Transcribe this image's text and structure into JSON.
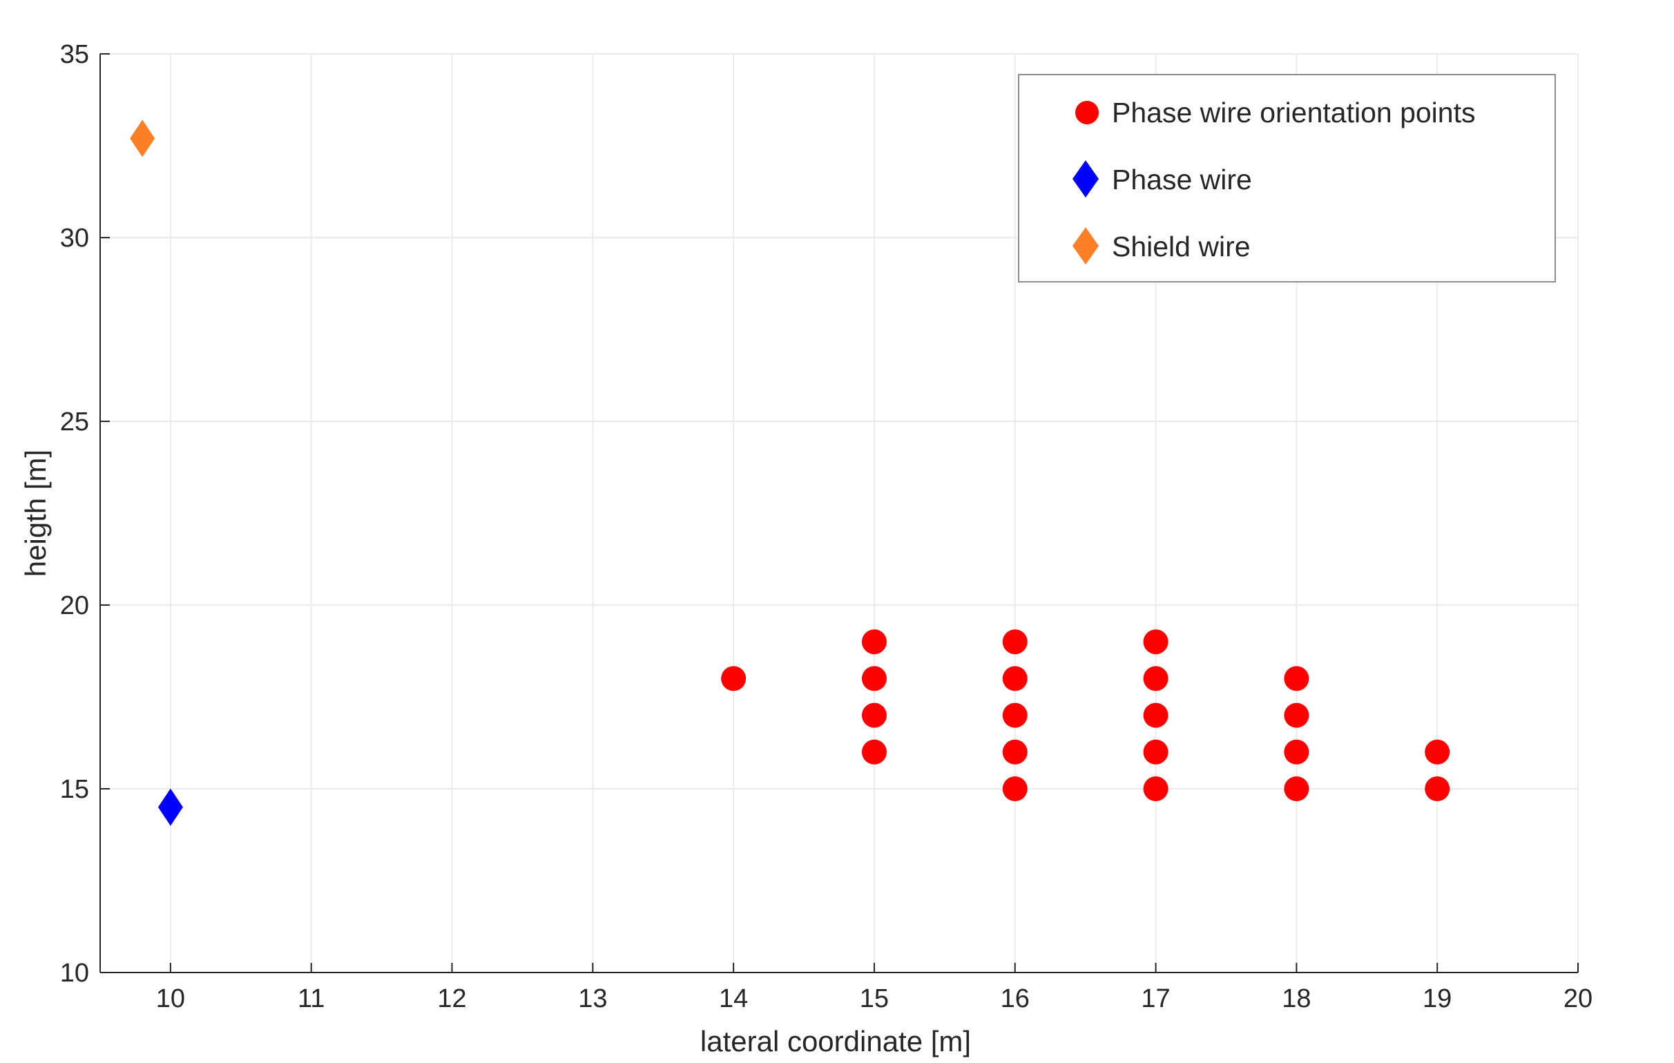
{
  "chart_data": {
    "type": "scatter",
    "xlabel": "lateral coordinate [m]",
    "ylabel": "heigth [m]",
    "xlim": [
      9.5,
      20
    ],
    "ylim": [
      10,
      35
    ],
    "xticks": [
      "10",
      "11",
      "12",
      "13",
      "14",
      "15",
      "16",
      "17",
      "18",
      "19",
      "20"
    ],
    "yticks": [
      "10",
      "15",
      "20",
      "25",
      "30",
      "35"
    ],
    "grid": true,
    "legend_position": "top-right",
    "series": [
      {
        "name": "Phase wire orientation points",
        "marker": "circle",
        "color": "#ff0000",
        "points": [
          [
            14,
            18
          ],
          [
            15,
            19
          ],
          [
            15,
            18
          ],
          [
            15,
            17
          ],
          [
            15,
            16
          ],
          [
            16,
            19
          ],
          [
            16,
            18
          ],
          [
            16,
            17
          ],
          [
            16,
            16
          ],
          [
            16,
            15
          ],
          [
            17,
            19
          ],
          [
            17,
            18
          ],
          [
            17,
            17
          ],
          [
            17,
            16
          ],
          [
            17,
            15
          ],
          [
            18,
            18
          ],
          [
            18,
            17
          ],
          [
            18,
            16
          ],
          [
            18,
            15
          ],
          [
            19,
            16
          ],
          [
            19,
            15
          ]
        ]
      },
      {
        "name": "Phase wire",
        "marker": "diamond",
        "color": "#0000ff",
        "points": [
          [
            10,
            14.5
          ]
        ]
      },
      {
        "name": "Shield wire",
        "marker": "diamond",
        "color": "#ff7f27",
        "points": [
          [
            9.8,
            32.7
          ]
        ]
      }
    ]
  }
}
